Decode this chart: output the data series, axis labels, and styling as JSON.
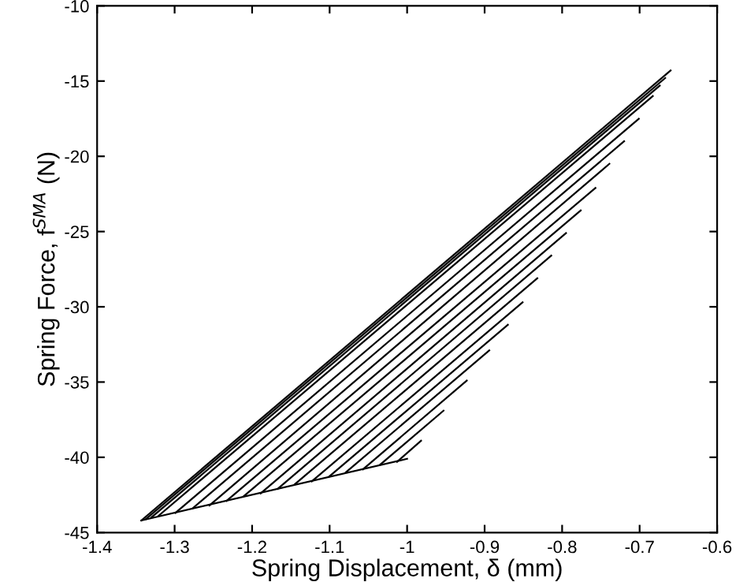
{
  "chart_data": {
    "type": "line",
    "xlabel": "Spring Displacement, δ (mm)",
    "ylabel": "Spring Force, f$^{SMA}$ (N)",
    "xlim": [
      -1.4,
      -0.6
    ],
    "xticks": [
      -1.4,
      -1.3,
      -1.2,
      -1.1,
      -1,
      -0.9,
      -0.8,
      -0.7,
      -0.6
    ],
    "ylim": [
      -45,
      -10
    ],
    "yticks": [
      -45,
      -40,
      -35,
      -30,
      -25,
      -20,
      -15,
      -10
    ],
    "grid": false,
    "line_style": "solid",
    "marker": "none",
    "series": [
      {
        "color": "#000000",
        "x": [
          -1.343,
          -1.0
        ],
        "values": [
          -44.2,
          -40.1
        ]
      },
      {
        "color": "#000000",
        "x": [
          -1.343,
          -0.66
        ],
        "values": [
          -44.2,
          -14.3
        ]
      },
      {
        "color": "#000000",
        "x": [
          -1.337,
          -0.667
        ],
        "values": [
          -44.1,
          -14.8
        ]
      },
      {
        "color": "#000000",
        "x": [
          -1.33,
          -0.674
        ],
        "values": [
          -44.0,
          -15.3
        ]
      },
      {
        "color": "#000000",
        "x": [
          -1.321,
          -0.683
        ],
        "values": [
          -43.9,
          -16.0
        ]
      },
      {
        "color": "#000000",
        "x": [
          -1.299,
          -0.701
        ],
        "values": [
          -43.7,
          -17.5
        ]
      },
      {
        "color": "#000000",
        "x": [
          -1.277,
          -0.72
        ],
        "values": [
          -43.4,
          -19.0
        ]
      },
      {
        "color": "#000000",
        "x": [
          -1.255,
          -0.739
        ],
        "values": [
          -43.2,
          -20.5
        ]
      },
      {
        "color": "#000000",
        "x": [
          -1.233,
          -0.757
        ],
        "values": [
          -42.9,
          -22.1
        ]
      },
      {
        "color": "#000000",
        "x": [
          -1.211,
          -0.776
        ],
        "values": [
          -42.6,
          -23.6
        ]
      },
      {
        "color": "#000000",
        "x": [
          -1.189,
          -0.795
        ],
        "values": [
          -42.4,
          -25.1
        ]
      },
      {
        "color": "#000000",
        "x": [
          -1.167,
          -0.814
        ],
        "values": [
          -42.1,
          -26.6
        ]
      },
      {
        "color": "#000000",
        "x": [
          -1.145,
          -0.832
        ],
        "values": [
          -41.8,
          -28.1
        ]
      },
      {
        "color": "#000000",
        "x": [
          -1.123,
          -0.851
        ],
        "values": [
          -41.6,
          -29.7
        ]
      },
      {
        "color": "#000000",
        "x": [
          -1.101,
          -0.87
        ],
        "values": [
          -41.3,
          -31.2
        ]
      },
      {
        "color": "#000000",
        "x": [
          -1.079,
          -0.894
        ],
        "values": [
          -41.0,
          -32.9
        ]
      },
      {
        "color": "#000000",
        "x": [
          -1.057,
          -0.923
        ],
        "values": [
          -40.8,
          -34.9
        ]
      },
      {
        "color": "#000000",
        "x": [
          -1.035,
          -0.953
        ],
        "values": [
          -40.5,
          -36.9
        ]
      },
      {
        "color": "#000000",
        "x": [
          -1.013,
          -0.982
        ],
        "values": [
          -40.3,
          -38.9
        ]
      }
    ]
  }
}
